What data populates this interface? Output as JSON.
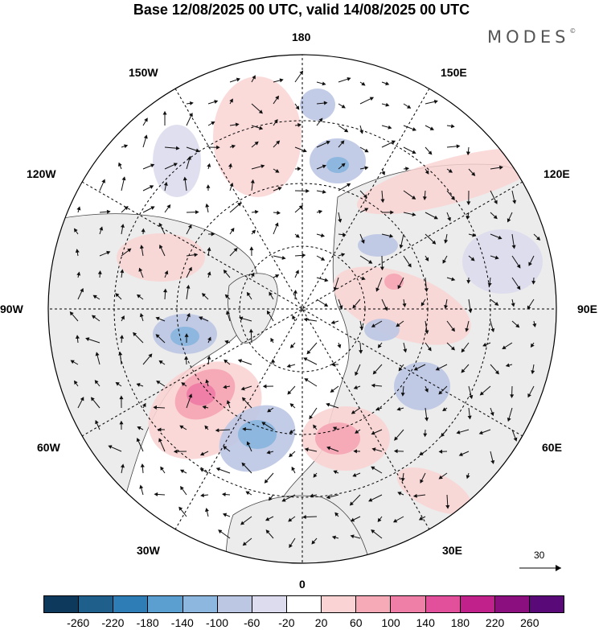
{
  "title": "Base 12/08/2025 00 UTC, valid 14/08/2025 00 UTC",
  "brand": "MODES",
  "brand_mark": "©",
  "longitude_labels": {
    "top": "180",
    "bottom": "0",
    "left": "90W",
    "right": "90E",
    "upper_left": "150W",
    "upper_right": "150E",
    "mid_upper_left": "120W",
    "mid_upper_right": "120E",
    "lower_left": "60W",
    "lower_right": "60E",
    "bottom_left": "30W",
    "bottom_right": "30E"
  },
  "reference_vector_value": "30",
  "colorbar": {
    "colors": [
      "#0d3a5c",
      "#1f5f8b",
      "#2f7db6",
      "#5a9fd0",
      "#8db7de",
      "#bcc7e4",
      "#dcdcee",
      "#ffffff",
      "#fad4d4",
      "#f6aab8",
      "#ef7fa6",
      "#e24f9a",
      "#c0218a",
      "#8c0f80",
      "#5a0a78"
    ],
    "labels": [
      "-260",
      "-220",
      "-180",
      "-140",
      "-100",
      "-60",
      "-20",
      "20",
      "60",
      "100",
      "140",
      "180",
      "220",
      "260"
    ]
  }
}
